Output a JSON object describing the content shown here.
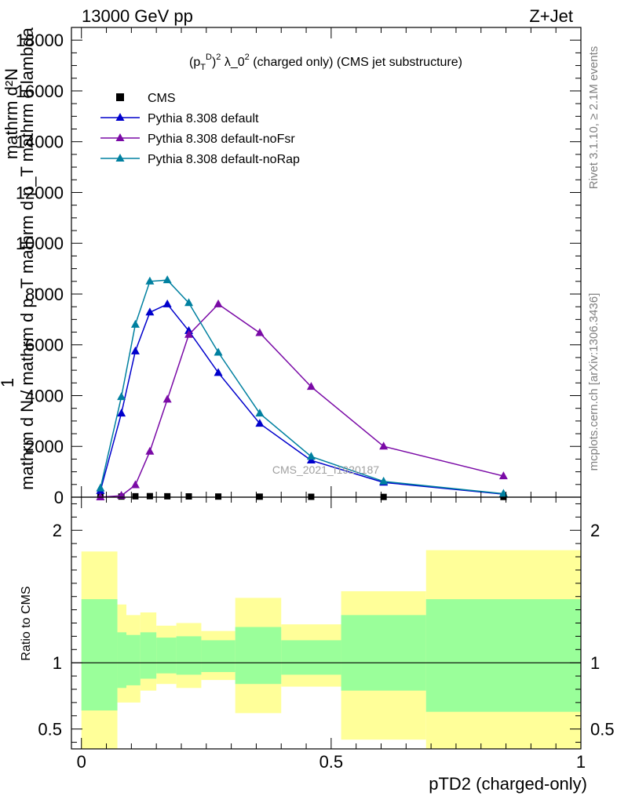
{
  "header": {
    "left": "13000 GeV pp",
    "right": "Z+Jet"
  },
  "side_labels": {
    "rivet": "Rivet 3.1.10, ≥ 2.1M events",
    "mcplots": "mcplots.cern.ch [arXiv:1306.3436]"
  },
  "watermark": "CMS_2021_I1920187",
  "colors": {
    "data": "#000000",
    "default": "#0000cc",
    "noFsr": "#7a0aa6",
    "noRap": "#0080a0",
    "band_inner": "#9aff9a",
    "band_outer": "#ffff99"
  },
  "chart_data": [
    {
      "type": "line",
      "title": "(p_T^D)^2 λ_0^2 (charged only) (CMS jet substructure)",
      "ylabel": "1 / mathrm d N / mathrm d p_T mathrm d p_T mathrm d lambda · mathrm d^2N",
      "ylim": [
        0,
        18500
      ],
      "yticks": [
        0,
        2000,
        4000,
        6000,
        8000,
        10000,
        12000,
        14000,
        16000,
        18000
      ],
      "ytick_labels": [
        "0",
        "2000",
        "4000",
        "6000",
        "8000",
        "10000",
        "12000",
        "14000",
        "16000",
        "18000"
      ],
      "xlim": [
        -0.02,
        1.0
      ],
      "legend_position": "top-left",
      "series": [
        {
          "name": "CMS",
          "key": "data",
          "x": [
            0.038,
            0.08,
            0.108,
            0.137,
            0.172,
            0.215,
            0.274,
            0.357,
            0.46,
            0.605,
            0.845
          ],
          "y": [
            20,
            25,
            35,
            40,
            35,
            30,
            25,
            20,
            15,
            10,
            8
          ]
        },
        {
          "name": "Pythia 8.308 default",
          "key": "default",
          "x": [
            0.038,
            0.08,
            0.108,
            0.137,
            0.172,
            0.215,
            0.274,
            0.357,
            0.46,
            0.605,
            0.845
          ],
          "y": [
            250,
            3300,
            5750,
            7280,
            7600,
            6550,
            4900,
            2900,
            1450,
            580,
            120
          ]
        },
        {
          "name": "Pythia 8.308 default-noFsr",
          "key": "noFsr",
          "x": [
            0.038,
            0.08,
            0.108,
            0.137,
            0.172,
            0.215,
            0.274,
            0.357,
            0.46,
            0.605,
            0.845
          ],
          "y": [
            0,
            60,
            480,
            1800,
            3850,
            6400,
            7600,
            6470,
            4350,
            2000,
            830
          ]
        },
        {
          "name": "Pythia 8.308 default-noRap",
          "key": "noRap",
          "x": [
            0.038,
            0.08,
            0.108,
            0.137,
            0.172,
            0.215,
            0.274,
            0.357,
            0.46,
            0.605,
            0.845
          ],
          "y": [
            350,
            3950,
            6800,
            8500,
            8550,
            7650,
            5700,
            3300,
            1600,
            620,
            140
          ]
        }
      ]
    },
    {
      "type": "area",
      "ylabel": "Ratio to CMS",
      "xlabel": "pTD2 (charged-only)",
      "xlim": [
        -0.02,
        1.0
      ],
      "xticks": [
        0,
        0.5,
        1
      ],
      "xtick_labels": [
        "0",
        "0.5",
        "1"
      ],
      "ylim": [
        0.35,
        2.25
      ],
      "yticks": [
        0.5,
        1,
        2
      ],
      "ytick_labels": [
        "0.5",
        "1",
        "2"
      ],
      "reference_line": 1,
      "bins": [
        {
          "x0": 0.0,
          "x1": 0.072,
          "inner": [
            0.64,
            1.48
          ],
          "outer": [
            0.35,
            1.84
          ]
        },
        {
          "x0": 0.072,
          "x1": 0.09,
          "inner": [
            0.81,
            1.23
          ],
          "outer": [
            0.7,
            1.44
          ]
        },
        {
          "x0": 0.09,
          "x1": 0.118,
          "inner": [
            0.83,
            1.21
          ],
          "outer": [
            0.7,
            1.36
          ]
        },
        {
          "x0": 0.118,
          "x1": 0.15,
          "inner": [
            0.88,
            1.23
          ],
          "outer": [
            0.79,
            1.38
          ]
        },
        {
          "x0": 0.15,
          "x1": 0.19,
          "inner": [
            0.92,
            1.19
          ],
          "outer": [
            0.84,
            1.28
          ]
        },
        {
          "x0": 0.19,
          "x1": 0.24,
          "inner": [
            0.91,
            1.2
          ],
          "outer": [
            0.81,
            1.3
          ]
        },
        {
          "x0": 0.24,
          "x1": 0.308,
          "inner": [
            0.93,
            1.17
          ],
          "outer": [
            0.87,
            1.24
          ]
        },
        {
          "x0": 0.308,
          "x1": 0.4,
          "inner": [
            0.84,
            1.27
          ],
          "outer": [
            0.62,
            1.49
          ]
        },
        {
          "x0": 0.4,
          "x1": 0.52,
          "inner": [
            0.91,
            1.17
          ],
          "outer": [
            0.82,
            1.29
          ]
        },
        {
          "x0": 0.52,
          "x1": 0.69,
          "inner": [
            0.79,
            1.36
          ],
          "outer": [
            0.42,
            1.54
          ]
        },
        {
          "x0": 0.69,
          "x1": 1.0,
          "inner": [
            0.63,
            1.48
          ],
          "outer": [
            0.35,
            1.85
          ]
        }
      ]
    }
  ]
}
